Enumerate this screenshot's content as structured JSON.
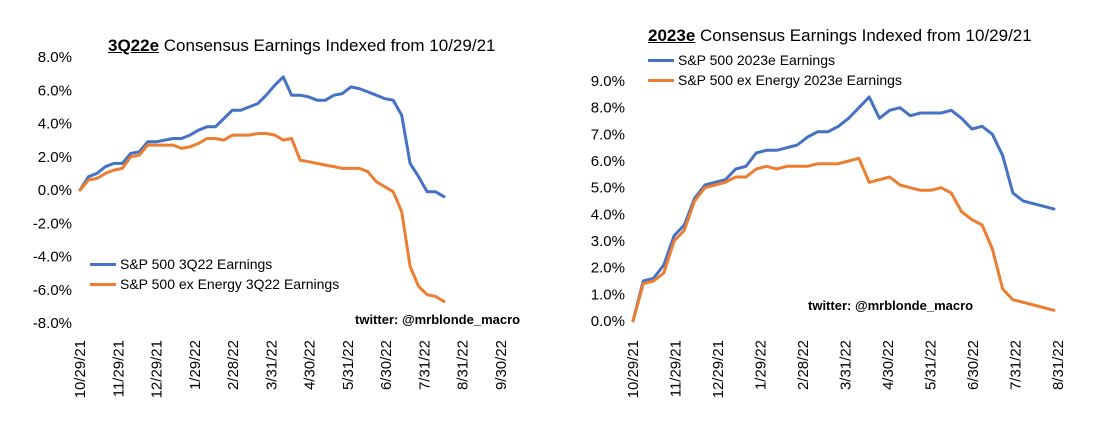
{
  "chart_data": [
    {
      "type": "line",
      "title_bold": "3Q22e",
      "title_rest": " Consensus Earnings Indexed from 10/29/21",
      "x_tick_labels": [
        "10/29/21",
        "11/29/21",
        "12/29/21",
        "1/29/22",
        "2/28/22",
        "3/31/22",
        "4/30/22",
        "5/31/22",
        "6/30/22",
        "7/31/22",
        "8/31/22",
        "9/30/22"
      ],
      "y_tick_labels": [
        "8.0%",
        "6.0%",
        "4.0%",
        "2.0%",
        "0.0%",
        "-2.0%",
        "-4.0%",
        "-6.0%",
        "-8.0%"
      ],
      "ylim": [
        -8,
        8
      ],
      "grid": false,
      "legend_position": "bottom-left",
      "series": [
        {
          "name": "S&P 500 3Q22 Earnings",
          "color": "#4472C4",
          "values": [
            0.0,
            0.8,
            1.0,
            1.4,
            1.6,
            1.6,
            2.2,
            2.3,
            2.9,
            2.9,
            3.0,
            3.1,
            3.1,
            3.3,
            3.6,
            3.8,
            3.8,
            4.3,
            4.8,
            4.8,
            5.0,
            5.2,
            5.7,
            6.3,
            6.8,
            5.7,
            5.7,
            5.6,
            5.4,
            5.4,
            5.7,
            5.8,
            6.2,
            6.1,
            5.9,
            5.7,
            5.5,
            5.4,
            4.5,
            1.6,
            0.8,
            -0.1,
            -0.1,
            -0.4
          ]
        },
        {
          "name": "S&P 500 ex Energy 3Q22 Earnings",
          "color": "#ED7D31",
          "values": [
            0.0,
            0.6,
            0.7,
            1.0,
            1.2,
            1.3,
            2.0,
            2.1,
            2.7,
            2.7,
            2.7,
            2.7,
            2.5,
            2.6,
            2.8,
            3.1,
            3.1,
            3.0,
            3.3,
            3.3,
            3.3,
            3.4,
            3.4,
            3.3,
            3.0,
            3.1,
            1.8,
            1.7,
            1.6,
            1.5,
            1.4,
            1.3,
            1.3,
            1.3,
            1.1,
            0.5,
            0.2,
            -0.1,
            -1.3,
            -4.6,
            -5.8,
            -6.3,
            -6.4,
            -6.7
          ]
        }
      ]
    },
    {
      "type": "line",
      "title_bold": "2023e",
      "title_rest": " Consensus Earnings Indexed from 10/29/21",
      "x_tick_labels": [
        "10/29/21",
        "11/29/21",
        "12/29/21",
        "1/29/22",
        "2/28/22",
        "3/31/22",
        "4/30/22",
        "5/31/22",
        "6/30/22",
        "7/31/22",
        "8/31/22"
      ],
      "y_tick_labels": [
        "9.0%",
        "8.0%",
        "7.0%",
        "6.0%",
        "5.0%",
        "4.0%",
        "3.0%",
        "2.0%",
        "1.0%",
        "0.0%"
      ],
      "ylim": [
        0,
        9
      ],
      "grid": false,
      "legend_position": "top-left",
      "series": [
        {
          "name": "S&P 500 2023e Earnings",
          "color": "#4472C4",
          "values": [
            0.0,
            1.5,
            1.6,
            2.1,
            3.2,
            3.6,
            4.6,
            5.1,
            5.2,
            5.3,
            5.7,
            5.8,
            6.3,
            6.4,
            6.4,
            6.5,
            6.6,
            6.9,
            7.1,
            7.1,
            7.3,
            7.6,
            8.0,
            8.4,
            7.6,
            7.9,
            8.0,
            7.7,
            7.8,
            7.8,
            7.8,
            7.9,
            7.6,
            7.2,
            7.3,
            7.0,
            6.2,
            4.8,
            4.5,
            4.4,
            4.3,
            4.2
          ]
        },
        {
          "name": "S&P 500 ex Energy 2023e Earnings",
          "color": "#ED7D31",
          "values": [
            0.0,
            1.4,
            1.5,
            1.8,
            3.0,
            3.4,
            4.5,
            5.0,
            5.1,
            5.2,
            5.4,
            5.4,
            5.7,
            5.8,
            5.7,
            5.8,
            5.8,
            5.8,
            5.9,
            5.9,
            5.9,
            6.0,
            6.1,
            5.2,
            5.3,
            5.4,
            5.1,
            5.0,
            4.9,
            4.9,
            5.0,
            4.8,
            4.1,
            3.8,
            3.6,
            2.7,
            1.2,
            0.8,
            0.7,
            0.6,
            0.5,
            0.4
          ]
        }
      ]
    }
  ],
  "left_credit": "twitter: @mrblonde_macro",
  "right_credit": "twitter: @mrblonde_macro"
}
